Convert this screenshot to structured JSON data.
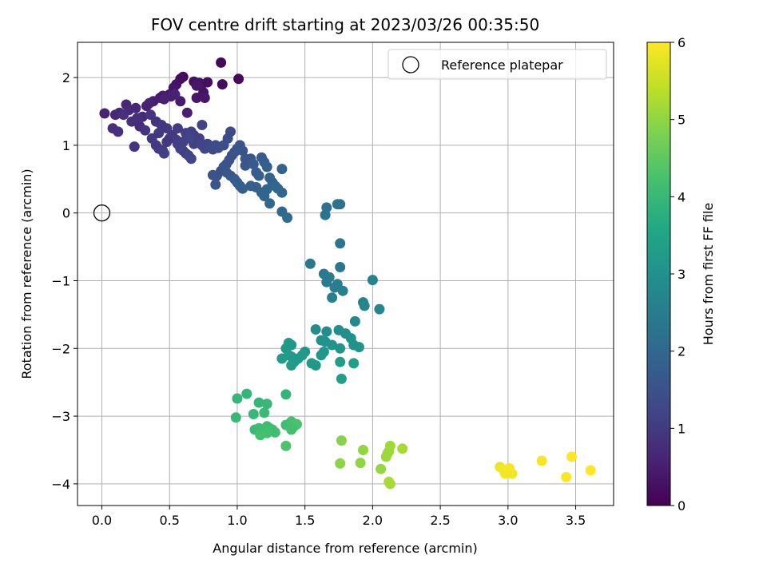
{
  "chart_data": {
    "type": "scatter",
    "title": "FOV centre drift starting at 2023/03/26 00:35:50",
    "xlabel": "Angular distance from reference (arcmin)",
    "ylabel": "Rotation from reference (arcmin)",
    "xlim": [
      -0.18,
      3.78
    ],
    "ylim": [
      -4.32,
      2.52
    ],
    "xticks": [
      0.0,
      0.5,
      1.0,
      1.5,
      2.0,
      2.5,
      3.0,
      3.5
    ],
    "xtick_labels": [
      "0.0",
      "0.5",
      "1.0",
      "1.5",
      "2.0",
      "2.5",
      "3.0",
      "3.5"
    ],
    "yticks": [
      -4,
      -3,
      -2,
      -1,
      0,
      1,
      2
    ],
    "ytick_labels": [
      "−4",
      "−3",
      "−2",
      "−1",
      "0",
      "1",
      "2"
    ],
    "grid": true,
    "legend": {
      "placement": "top-right",
      "entries": [
        {
          "label": "Reference platepar",
          "marker": "open-circle"
        }
      ]
    },
    "reference_point": {
      "x": 0.0,
      "y": 0.0
    },
    "colorbar": {
      "label": "Hours from first FF file",
      "range": [
        0,
        6
      ],
      "ticks": [
        0,
        1,
        2,
        3,
        4,
        5,
        6
      ],
      "tick_labels": [
        "0",
        "1",
        "2",
        "3",
        "4",
        "5",
        "6"
      ],
      "colormap": "viridis"
    },
    "points": [
      [
        0.88,
        2.22,
        0.1
      ],
      [
        1.01,
        1.98,
        0.15
      ],
      [
        0.89,
        1.9,
        0.2
      ],
      [
        0.6,
        2.01,
        0.15
      ],
      [
        0.58,
        1.98,
        0.2
      ],
      [
        0.68,
        1.94,
        0.25
      ],
      [
        0.72,
        1.92,
        0.3
      ],
      [
        0.74,
        1.9,
        0.35
      ],
      [
        0.78,
        1.93,
        0.25
      ],
      [
        0.7,
        1.88,
        0.4
      ],
      [
        0.55,
        1.9,
        0.3
      ],
      [
        0.53,
        1.85,
        0.35
      ],
      [
        0.5,
        1.75,
        0.4
      ],
      [
        0.45,
        1.73,
        0.5
      ],
      [
        0.43,
        1.7,
        0.45
      ],
      [
        0.46,
        1.68,
        0.55
      ],
      [
        0.38,
        1.65,
        0.5
      ],
      [
        0.35,
        1.62,
        0.6
      ],
      [
        0.33,
        1.58,
        0.55
      ],
      [
        0.75,
        1.78,
        0.3
      ],
      [
        0.7,
        1.7,
        0.35
      ],
      [
        0.76,
        1.7,
        0.4
      ],
      [
        0.58,
        1.65,
        0.45
      ],
      [
        0.63,
        1.48,
        0.5
      ],
      [
        0.54,
        1.75,
        0.6
      ],
      [
        0.51,
        1.72,
        0.55
      ],
      [
        0.02,
        1.47,
        0.6
      ],
      [
        0.1,
        1.45,
        0.65
      ],
      [
        0.13,
        1.48,
        0.7
      ],
      [
        0.2,
        1.52,
        0.75
      ],
      [
        0.18,
        1.6,
        0.7
      ],
      [
        0.25,
        1.55,
        0.65
      ],
      [
        0.3,
        1.42,
        0.7
      ],
      [
        0.22,
        1.35,
        0.8
      ],
      [
        0.28,
        1.28,
        0.75
      ],
      [
        0.08,
        1.25,
        0.8
      ],
      [
        0.12,
        1.2,
        0.85
      ],
      [
        0.16,
        1.45,
        0.8
      ],
      [
        0.26,
        1.4,
        0.8
      ],
      [
        0.24,
        0.98,
        0.9
      ],
      [
        0.36,
        1.45,
        0.9
      ],
      [
        0.4,
        1.35,
        0.85
      ],
      [
        0.32,
        1.22,
        0.9
      ],
      [
        0.37,
        1.1,
        1.0
      ],
      [
        0.4,
        1.0,
        1.0
      ],
      [
        0.42,
        0.95,
        1.0
      ],
      [
        0.45,
        0.92,
        1.05
      ],
      [
        0.46,
        0.88,
        1.1
      ],
      [
        0.48,
        1.05,
        1.0
      ],
      [
        0.5,
        1.1,
        0.95
      ],
      [
        0.52,
        1.15,
        1.0
      ],
      [
        0.55,
        1.08,
        1.05
      ],
      [
        0.56,
        1.02,
        1.1
      ],
      [
        0.58,
        0.95,
        1.15
      ],
      [
        0.6,
        0.92,
        1.2
      ],
      [
        0.62,
        0.88,
        1.15
      ],
      [
        0.64,
        0.85,
        1.2
      ],
      [
        0.66,
        0.8,
        1.25
      ],
      [
        0.68,
        1.02,
        1.1
      ],
      [
        0.7,
        1.05,
        1.1
      ],
      [
        0.72,
        1.1,
        1.15
      ],
      [
        0.74,
        1.0,
        1.2
      ],
      [
        0.76,
        0.95,
        1.25
      ],
      [
        0.78,
        1.02,
        1.2
      ],
      [
        0.8,
        0.98,
        1.3
      ],
      [
        0.82,
        0.94,
        1.3
      ],
      [
        0.84,
        1.0,
        1.35
      ],
      [
        0.86,
        0.96,
        1.4
      ],
      [
        0.74,
        1.3,
        1.2
      ],
      [
        0.62,
        1.18,
        1.1
      ],
      [
        0.56,
        1.25,
        1.05
      ],
      [
        0.48,
        1.25,
        1.0
      ],
      [
        0.44,
        1.3,
        0.95
      ],
      [
        0.42,
        1.18,
        1.0
      ],
      [
        0.66,
        1.2,
        1.15
      ],
      [
        0.68,
        1.15,
        1.1
      ],
      [
        0.65,
        1.1,
        1.2
      ],
      [
        0.6,
        1.05,
        1.15
      ],
      [
        0.85,
        0.55,
        1.5
      ],
      [
        0.88,
        0.62,
        1.45
      ],
      [
        0.82,
        0.56,
        1.5
      ],
      [
        0.84,
        0.42,
        1.6
      ],
      [
        0.9,
        0.68,
        1.5
      ],
      [
        0.92,
        0.72,
        1.55
      ],
      [
        0.94,
        0.78,
        1.5
      ],
      [
        0.96,
        0.85,
        1.45
      ],
      [
        0.98,
        0.9,
        1.5
      ],
      [
        1.0,
        0.95,
        1.55
      ],
      [
        1.02,
        1.0,
        1.6
      ],
      [
        1.04,
        0.92,
        1.55
      ],
      [
        1.06,
        0.8,
        1.6
      ],
      [
        0.93,
        1.1,
        1.4
      ],
      [
        0.95,
        1.2,
        1.35
      ],
      [
        0.9,
        1.0,
        1.4
      ],
      [
        0.92,
        0.6,
        1.6
      ],
      [
        0.95,
        0.55,
        1.65
      ],
      [
        0.98,
        0.5,
        1.7
      ],
      [
        1.0,
        0.45,
        1.75
      ],
      [
        1.02,
        0.4,
        1.8
      ],
      [
        1.04,
        0.36,
        1.8
      ],
      [
        1.06,
        0.7,
        1.65
      ],
      [
        1.08,
        0.75,
        1.6
      ],
      [
        1.1,
        0.8,
        1.65
      ],
      [
        1.12,
        0.72,
        1.7
      ],
      [
        1.14,
        0.6,
        1.75
      ],
      [
        1.16,
        0.55,
        1.8
      ],
      [
        1.18,
        0.82,
        1.7
      ],
      [
        1.2,
        0.75,
        1.75
      ],
      [
        1.22,
        0.68,
        1.8
      ],
      [
        1.24,
        0.52,
        1.85
      ],
      [
        1.26,
        0.45,
        1.9
      ],
      [
        1.28,
        0.4,
        1.95
      ],
      [
        1.3,
        0.36,
        2.0
      ],
      [
        1.33,
        0.3,
        2.0
      ],
      [
        1.22,
        0.35,
        1.95
      ],
      [
        1.18,
        0.3,
        1.9
      ],
      [
        1.2,
        0.25,
        1.95
      ],
      [
        1.24,
        0.14,
        2.0
      ],
      [
        1.1,
        0.4,
        1.8
      ],
      [
        1.14,
        0.38,
        1.85
      ],
      [
        1.33,
        0.65,
        1.9
      ],
      [
        1.33,
        0.02,
        2.05
      ],
      [
        1.37,
        -0.07,
        2.1
      ],
      [
        1.66,
        0.08,
        2.2
      ],
      [
        1.74,
        0.13,
        2.25
      ],
      [
        1.76,
        0.13,
        2.25
      ],
      [
        1.65,
        -0.03,
        2.3
      ],
      [
        1.54,
        -0.75,
        2.4
      ],
      [
        1.76,
        -0.45,
        2.35
      ],
      [
        1.76,
        -0.8,
        2.4
      ],
      [
        1.64,
        -0.9,
        2.45
      ],
      [
        1.68,
        -0.95,
        2.5
      ],
      [
        1.66,
        -1.02,
        2.5
      ],
      [
        1.74,
        -1.05,
        2.55
      ],
      [
        1.72,
        -1.1,
        2.55
      ],
      [
        1.78,
        -1.15,
        2.6
      ],
      [
        1.7,
        -1.25,
        2.6
      ],
      [
        1.93,
        -1.32,
        2.65
      ],
      [
        1.94,
        -1.37,
        2.7
      ],
      [
        2.0,
        -0.99,
        2.65
      ],
      [
        2.05,
        -1.42,
        2.7
      ],
      [
        1.87,
        -1.6,
        2.8
      ],
      [
        1.58,
        -1.72,
        2.9
      ],
      [
        1.66,
        -1.75,
        2.9
      ],
      [
        1.75,
        -1.73,
        2.95
      ],
      [
        1.8,
        -1.78,
        2.95
      ],
      [
        1.84,
        -1.85,
        3.0
      ],
      [
        1.86,
        -1.95,
        3.0
      ],
      [
        1.9,
        -1.98,
        3.05
      ],
      [
        1.62,
        -1.88,
        3.0
      ],
      [
        1.65,
        -1.9,
        3.05
      ],
      [
        1.7,
        -1.95,
        3.1
      ],
      [
        1.76,
        -2.0,
        3.1
      ],
      [
        1.64,
        -2.05,
        3.15
      ],
      [
        1.62,
        -2.1,
        3.15
      ],
      [
        1.58,
        -2.25,
        3.2
      ],
      [
        1.55,
        -2.22,
        3.2
      ],
      [
        1.5,
        -2.05,
        3.15
      ],
      [
        1.48,
        -2.1,
        3.2
      ],
      [
        1.45,
        -2.15,
        3.25
      ],
      [
        1.42,
        -2.2,
        3.25
      ],
      [
        1.4,
        -2.25,
        3.3
      ],
      [
        1.38,
        -2.1,
        3.25
      ],
      [
        1.36,
        -2.0,
        3.2
      ],
      [
        1.33,
        -2.15,
        3.3
      ],
      [
        1.4,
        -1.95,
        3.2
      ],
      [
        1.76,
        -2.2,
        3.3
      ],
      [
        1.86,
        -2.22,
        3.35
      ],
      [
        1.77,
        -2.45,
        3.4
      ],
      [
        1.38,
        -1.92,
        3.2
      ],
      [
        1.4,
        -2.12,
        3.25
      ],
      [
        1.36,
        -2.68,
        3.9
      ],
      [
        1.07,
        -2.67,
        3.95
      ],
      [
        1.0,
        -2.74,
        3.95
      ],
      [
        0.99,
        -3.02,
        4.0
      ],
      [
        1.12,
        -2.97,
        4.0
      ],
      [
        1.16,
        -2.8,
        3.95
      ],
      [
        1.22,
        -2.82,
        4.0
      ],
      [
        1.2,
        -2.95,
        4.05
      ],
      [
        1.13,
        -3.2,
        4.05
      ],
      [
        1.16,
        -3.18,
        4.1
      ],
      [
        1.18,
        -3.2,
        4.1
      ],
      [
        1.2,
        -3.22,
        4.15
      ],
      [
        1.22,
        -3.15,
        4.15
      ],
      [
        1.24,
        -3.18,
        4.1
      ],
      [
        1.26,
        -3.2,
        4.15
      ],
      [
        1.28,
        -3.24,
        4.2
      ],
      [
        1.17,
        -3.28,
        4.2
      ],
      [
        1.25,
        -3.22,
        4.15
      ],
      [
        1.36,
        -3.13,
        4.15
      ],
      [
        1.4,
        -3.08,
        4.2
      ],
      [
        1.42,
        -3.15,
        4.2
      ],
      [
        1.44,
        -3.12,
        4.25
      ],
      [
        1.4,
        -3.2,
        4.2
      ],
      [
        1.36,
        -3.44,
        4.3
      ],
      [
        1.22,
        -3.25,
        4.2
      ],
      [
        1.77,
        -3.36,
        4.9
      ],
      [
        1.76,
        -3.7,
        4.95
      ],
      [
        1.93,
        -3.5,
        5.0
      ],
      [
        1.91,
        -3.69,
        5.0
      ],
      [
        2.06,
        -3.78,
        5.05
      ],
      [
        2.1,
        -3.6,
        5.1
      ],
      [
        2.12,
        -3.52,
        5.1
      ],
      [
        2.13,
        -3.44,
        5.15
      ],
      [
        2.11,
        -3.55,
        5.1
      ],
      [
        2.22,
        -3.48,
        5.2
      ],
      [
        2.12,
        -3.97,
        5.25
      ],
      [
        2.13,
        -4.0,
        5.2
      ],
      [
        2.94,
        -3.75,
        5.85
      ],
      [
        2.97,
        -3.8,
        5.9
      ],
      [
        2.98,
        -3.85,
        5.9
      ],
      [
        3.01,
        -3.77,
        5.95
      ],
      [
        3.03,
        -3.85,
        5.9
      ],
      [
        3.25,
        -3.66,
        5.95
      ],
      [
        3.43,
        -3.9,
        6.0
      ],
      [
        3.47,
        -3.6,
        6.0
      ],
      [
        3.61,
        -3.8,
        6.0
      ]
    ]
  }
}
